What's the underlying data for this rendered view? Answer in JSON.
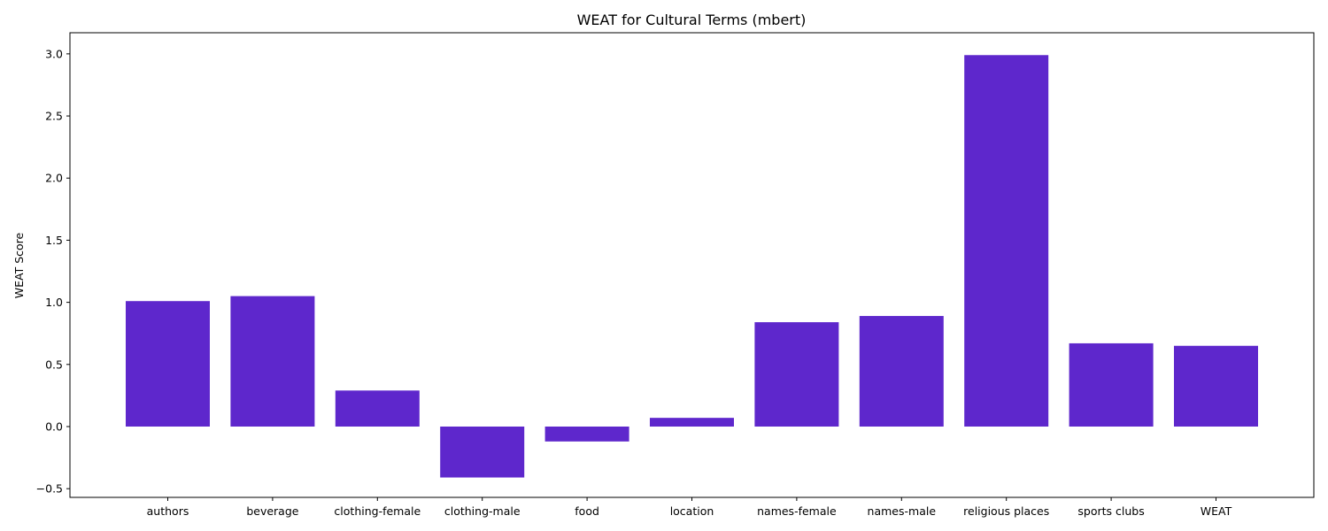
{
  "chart_data": {
    "type": "bar",
    "title": "WEAT for Cultural Terms (mbert)",
    "xlabel": "",
    "ylabel": "WEAT Score",
    "categories": [
      "authors",
      "beverage",
      "clothing-female",
      "clothing-male",
      "food",
      "location",
      "names-female",
      "names-male",
      "religious places",
      "sports clubs",
      "WEAT"
    ],
    "values": [
      1.01,
      1.05,
      0.29,
      -0.41,
      -0.12,
      0.07,
      0.84,
      0.89,
      2.99,
      0.67,
      0.65
    ],
    "ylim": [
      -0.57,
      3.17
    ],
    "yticks": [
      -0.5,
      0.0,
      0.5,
      1.0,
      1.5,
      2.0,
      2.5,
      3.0
    ],
    "ytick_labels": [
      "−0.5",
      "0.0",
      "0.5",
      "1.0",
      "1.5",
      "2.0",
      "2.5",
      "3.0"
    ],
    "bar_color": "#5e27cc",
    "grid": false,
    "legend": "none"
  }
}
